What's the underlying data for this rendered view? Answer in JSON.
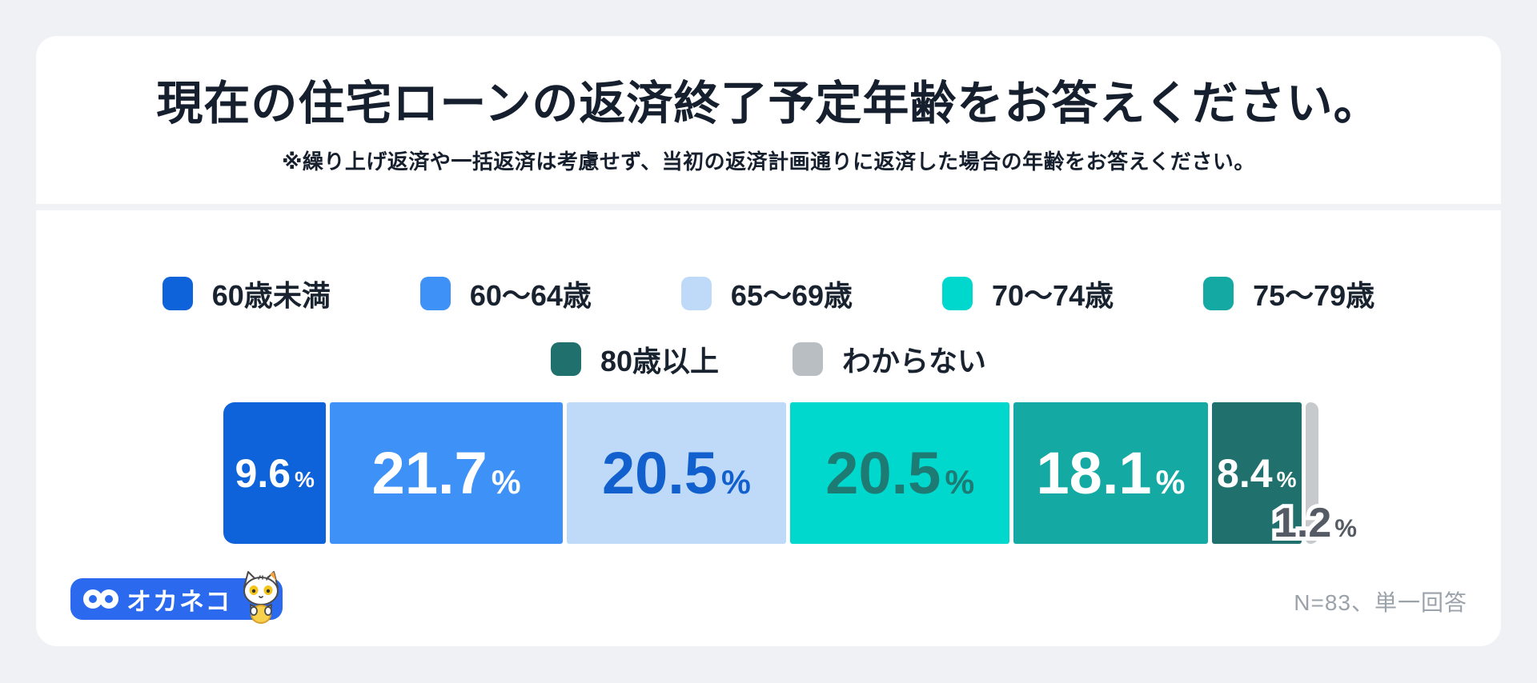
{
  "header": {
    "title": "現在の住宅ローンの返済終了予定年齢をお答えください。",
    "subtitle": "※繰り上げ返済や一括返済は考慮せず、当初の返済計画通りに返済した場合の年齢をお答えください。"
  },
  "chart_data": {
    "type": "bar",
    "subtype": "stacked-horizontal-percentage",
    "title": "現在の住宅ローンの返済終了予定年齢をお答えください。",
    "unit": "%",
    "total": 100,
    "categories": [
      "60歳未満",
      "60〜64歳",
      "65〜69歳",
      "70〜74歳",
      "75〜79歳",
      "80歳以上",
      "わからない"
    ],
    "values": [
      9.6,
      21.7,
      20.5,
      20.5,
      18.1,
      8.4,
      1.2
    ],
    "value_labels": [
      "9.6",
      "21.7",
      "20.5",
      "20.5",
      "18.1",
      "8.4",
      "1.2"
    ],
    "label_style": [
      "sm",
      "lg",
      "lg",
      "lg",
      "lg",
      "sm",
      "out"
    ],
    "segment_colors": [
      "#0E63DA",
      "#3E92F7",
      "#BFDAF9",
      "#00D8CE",
      "#14A9A2",
      "#20716D",
      "#C7CACD"
    ],
    "label_colors": [
      "#FFFFFF",
      "#FFFFFF",
      "#1160CE",
      "#1E7B74",
      "#FFFFFF",
      "#FFFFFF",
      "#555B64"
    ],
    "legend_colors": [
      "#0E63DA",
      "#3E92F7",
      "#BFDAF9",
      "#00D8CE",
      "#14A9A2",
      "#20716D",
      "#B9BEC3"
    ],
    "legend_rows": [
      [
        0,
        1,
        2,
        3,
        4
      ],
      [
        5,
        6
      ]
    ],
    "legend_position": "top",
    "sample_note": "N=83、単一回答"
  },
  "footer": {
    "logo_text": "オカネコ",
    "note": "N=83、単一回答"
  },
  "colors": {
    "page_bg": "#EFF1F5",
    "card_bg": "#FFFFFF",
    "divider": "#F0F2F6",
    "title_text": "#161F2D",
    "note_text": "#9BA2AA",
    "logo_bg": "#2B6AEF"
  }
}
